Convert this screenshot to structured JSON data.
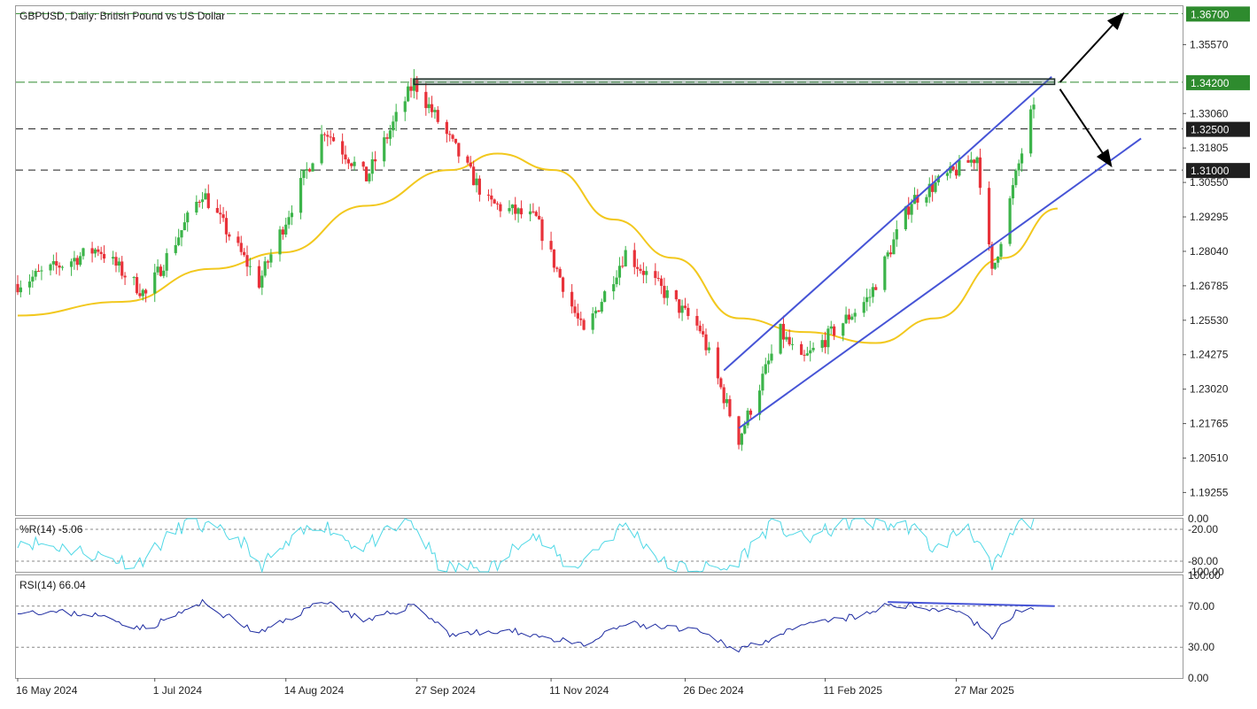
{
  "title": "GBPUSD, Daily:  British Pound vs US Dollar",
  "colors": {
    "bull": "#3cb44a",
    "bear": "#e8323a",
    "ma": "#f2c81e",
    "channel": "#4654d6",
    "williams": "#4fd8e6",
    "rsi": "#1c2aa0",
    "level_badge": "#2e8b2e",
    "current_badge": "#1f1f1f"
  },
  "main_axis": {
    "ylim": [
      1.1843,
      1.3697
    ],
    "tick_labels": [
      "1.35570",
      "1.33060",
      "1.31805",
      "1.30550",
      "1.29295",
      "1.28040",
      "1.26785",
      "1.25530",
      "1.24275",
      "1.23020",
      "1.21765",
      "1.20510",
      "1.19255"
    ]
  },
  "price_levels": [
    {
      "label": "1.36700",
      "value": 1.367,
      "style": "dash-dot",
      "color": "#2e8b2e"
    },
    {
      "label": "1.34200",
      "value": 1.342,
      "style": "dash-dot",
      "color": "#2e8b2e"
    },
    {
      "label": "1.32500",
      "value": 1.325,
      "style": "dash",
      "color": "#1f1f1f"
    },
    {
      "label": "1.31000",
      "value": 1.31,
      "style": "dash",
      "color": "#1f1f1f"
    }
  ],
  "x_axis": {
    "labels": [
      "16 May 2024",
      "1 Jul 2024",
      "14 Aug 2024",
      "27 Sep 2024",
      "11 Nov 2024",
      "26 Dec 2024",
      "11 Feb 2025",
      "27 Mar 2025"
    ]
  },
  "williams": {
    "title": "%R(14) -5.06",
    "tick_labels": [
      "0.00",
      "-20.00",
      "-80.00",
      "-100.00"
    ]
  },
  "rsi": {
    "title": "RSI(14) 66.04",
    "tick_labels": [
      "100.00",
      "70.00",
      "30.00",
      "0.00"
    ]
  },
  "chart_data": {
    "type": "candlestick",
    "title": "GBPUSD, Daily:  British Pound vs US Dollar",
    "ylim": [
      1.1843,
      1.3697
    ],
    "x_range": [
      "2024-05-16",
      "2025-04-22"
    ],
    "grid": false,
    "key_points": [
      {
        "date": "2024-05-16",
        "close": 1.2685
      },
      {
        "date": "2024-06-12",
        "close": 1.2815
      },
      {
        "date": "2024-06-28",
        "close": 1.2645
      },
      {
        "date": "2024-07-17",
        "close": 1.302
      },
      {
        "date": "2024-08-05",
        "close": 1.269
      },
      {
        "date": "2024-08-27",
        "close": 1.325
      },
      {
        "date": "2024-09-10",
        "close": 1.307
      },
      {
        "date": "2024-09-26",
        "close": 1.342
      },
      {
        "date": "2024-10-21",
        "close": 1.298
      },
      {
        "date": "2024-11-06",
        "close": 1.292
      },
      {
        "date": "2024-11-22",
        "close": 1.25
      },
      {
        "date": "2024-12-06",
        "close": 1.28
      },
      {
        "date": "2024-12-31",
        "close": 1.252
      },
      {
        "date": "2025-01-13",
        "close": 1.212
      },
      {
        "date": "2025-01-27",
        "close": 1.251
      },
      {
        "date": "2025-02-03",
        "close": 1.24
      },
      {
        "date": "2025-02-26",
        "close": 1.264
      },
      {
        "date": "2025-03-12",
        "close": 1.299
      },
      {
        "date": "2025-04-03",
        "close": 1.315
      },
      {
        "date": "2025-04-08",
        "close": 1.272
      },
      {
        "date": "2025-04-21",
        "close": 1.33
      },
      {
        "date": "2025-04-28",
        "close": 1.337
      }
    ],
    "moving_average": [
      {
        "date": "2024-05-16",
        "value": 1.257
      },
      {
        "date": "2024-06-20",
        "value": 1.262
      },
      {
        "date": "2024-07-20",
        "value": 1.274
      },
      {
        "date": "2024-08-13",
        "value": 1.28
      },
      {
        "date": "2024-09-10",
        "value": 1.297
      },
      {
        "date": "2024-10-08",
        "value": 1.31
      },
      {
        "date": "2024-10-24",
        "value": 1.316
      },
      {
        "date": "2024-11-12",
        "value": 1.31
      },
      {
        "date": "2024-12-02",
        "value": 1.292
      },
      {
        "date": "2024-12-22",
        "value": 1.278
      },
      {
        "date": "2025-01-13",
        "value": 1.256
      },
      {
        "date": "2025-02-04",
        "value": 1.251
      },
      {
        "date": "2025-02-28",
        "value": 1.247
      },
      {
        "date": "2025-03-20",
        "value": 1.256
      },
      {
        "date": "2025-04-12",
        "value": 1.278
      },
      {
        "date": "2025-04-30",
        "value": 1.296
      }
    ],
    "channel": {
      "upper": [
        {
          "date": "2025-01-08",
          "value": 1.237
        },
        {
          "date": "2025-04-28",
          "value": 1.344
        }
      ],
      "lower": [
        {
          "date": "2025-01-13",
          "value": 1.216
        },
        {
          "date": "2025-05-28",
          "value": 1.3215
        }
      ]
    },
    "resistance_zone": {
      "from": "2024-09-26",
      "to": "2025-04-29",
      "low": 1.3412,
      "high": 1.3432
    },
    "scenario_arrows": [
      {
        "from": {
          "date": "2025-04-29",
          "value": 1.342
        },
        "to": {
          "date": "2025-05-22",
          "value": 1.367
        }
      },
      {
        "from": {
          "date": "2025-04-29",
          "value": 1.3395
        },
        "to": {
          "date": "2025-05-18",
          "value": 1.3115
        }
      }
    ],
    "williams_r": {
      "name": "%R(14)",
      "last": -5.06,
      "ylim": [
        -100,
        0
      ],
      "levels": [
        -20,
        -80
      ],
      "key_points": [
        {
          "date": "2024-05-16",
          "value": -40
        },
        {
          "date": "2024-06-01",
          "value": -55
        },
        {
          "date": "2024-06-25",
          "value": -85
        },
        {
          "date": "2024-07-12",
          "value": -5
        },
        {
          "date": "2024-07-30",
          "value": -40
        },
        {
          "date": "2024-08-05",
          "value": -92
        },
        {
          "date": "2024-08-25",
          "value": -5
        },
        {
          "date": "2024-09-08",
          "value": -55
        },
        {
          "date": "2024-09-25",
          "value": -4
        },
        {
          "date": "2024-10-05",
          "value": -95
        },
        {
          "date": "2024-10-25",
          "value": -90
        },
        {
          "date": "2024-11-03",
          "value": -20
        },
        {
          "date": "2024-11-18",
          "value": -95
        },
        {
          "date": "2024-12-06",
          "value": -10
        },
        {
          "date": "2024-12-20",
          "value": -90
        },
        {
          "date": "2025-01-10",
          "value": -95
        },
        {
          "date": "2025-01-24",
          "value": -10
        },
        {
          "date": "2025-02-04",
          "value": -40
        },
        {
          "date": "2025-02-20",
          "value": -5
        },
        {
          "date": "2025-03-12",
          "value": -15
        },
        {
          "date": "2025-03-20",
          "value": -60
        },
        {
          "date": "2025-03-31",
          "value": -10
        },
        {
          "date": "2025-04-08",
          "value": -98
        },
        {
          "date": "2025-04-17",
          "value": -10
        },
        {
          "date": "2025-04-28",
          "value": -5
        }
      ]
    },
    "rsi": {
      "name": "RSI(14)",
      "last": 66.04,
      "ylim": [
        0,
        100
      ],
      "levels": [
        70,
        30
      ],
      "key_points": [
        {
          "date": "2024-05-16",
          "value": 66
        },
        {
          "date": "2024-06-10",
          "value": 62
        },
        {
          "date": "2024-06-28",
          "value": 48
        },
        {
          "date": "2024-07-17",
          "value": 73
        },
        {
          "date": "2024-08-05",
          "value": 43
        },
        {
          "date": "2024-08-27",
          "value": 76
        },
        {
          "date": "2024-09-10",
          "value": 54
        },
        {
          "date": "2024-09-26",
          "value": 72
        },
        {
          "date": "2024-10-08",
          "value": 43
        },
        {
          "date": "2024-11-01",
          "value": 45
        },
        {
          "date": "2024-11-22",
          "value": 31
        },
        {
          "date": "2024-12-06",
          "value": 53
        },
        {
          "date": "2024-12-30",
          "value": 45
        },
        {
          "date": "2025-01-13",
          "value": 28
        },
        {
          "date": "2025-02-07",
          "value": 53
        },
        {
          "date": "2025-02-26",
          "value": 62
        },
        {
          "date": "2025-03-04",
          "value": 72
        },
        {
          "date": "2025-03-28",
          "value": 66
        },
        {
          "date": "2025-04-08",
          "value": 40
        },
        {
          "date": "2025-04-17",
          "value": 67
        },
        {
          "date": "2025-04-28",
          "value": 66
        }
      ],
      "trendline": [
        {
          "date": "2025-03-04",
          "value": 74
        },
        {
          "date": "2025-04-29",
          "value": 70
        }
      ]
    }
  }
}
